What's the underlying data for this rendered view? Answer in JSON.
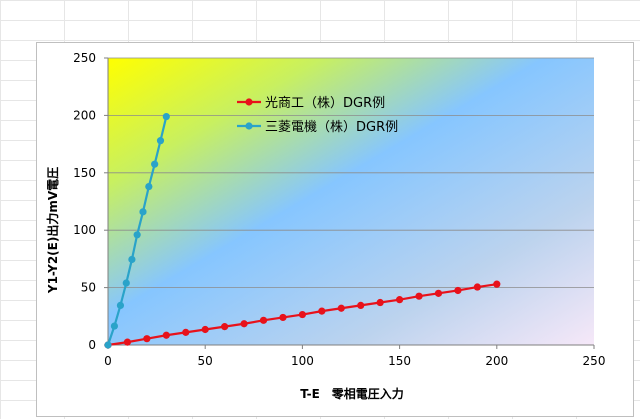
{
  "chart_data": {
    "type": "line",
    "xlabel": "T-E　零相電圧入力",
    "ylabel": "Y1-Y2(E)出力mV電圧",
    "xlim": [
      0,
      250
    ],
    "ylim": [
      0,
      250
    ],
    "x_ticks": [
      "0",
      "50",
      "100",
      "150",
      "200",
      "250"
    ],
    "y_ticks": [
      "0",
      "50",
      "100",
      "150",
      "200",
      "250"
    ],
    "grid": "horizontal",
    "legend_position": "top-center",
    "series": [
      {
        "name": "光商工（株）DGR例",
        "color": "#e8121b",
        "x": [
          0,
          10,
          20,
          30,
          40,
          50,
          60,
          70,
          80,
          90,
          100,
          110,
          120,
          130,
          140,
          150,
          160,
          170,
          180,
          190,
          200
        ],
        "y": [
          0,
          2.5,
          5.5,
          8.5,
          11,
          13.5,
          16,
          18.5,
          21.5,
          24,
          26.5,
          29.5,
          32,
          34.5,
          37,
          39.5,
          42.5,
          45,
          47.5,
          50.5,
          53
        ]
      },
      {
        "name": "三菱電機（株）DGR例",
        "color": "#2aa3c9",
        "x": [
          0,
          3.3,
          6.4,
          9.4,
          12.3,
          15,
          18,
          21,
          24,
          27,
          30
        ],
        "y": [
          0,
          16.5,
          34.5,
          54,
          74.5,
          96,
          116,
          138,
          157.5,
          178,
          199
        ]
      }
    ]
  }
}
